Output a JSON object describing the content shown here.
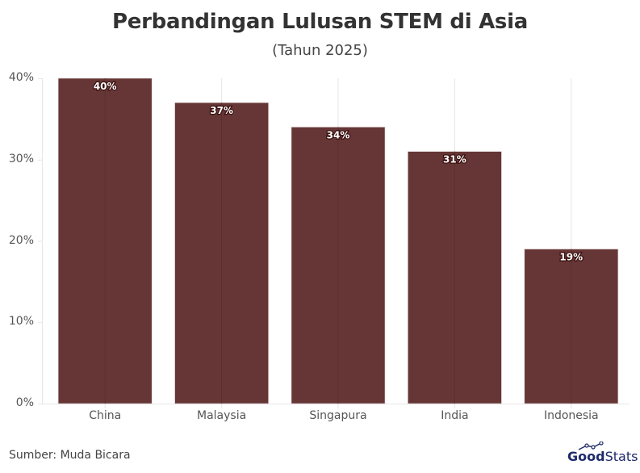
{
  "header": {
    "title": "Perbandingan Lulusan STEM di Asia",
    "subtitle": "(Tahun 2025)"
  },
  "footer": {
    "source": "Sumber: Muda Bicara",
    "logo_bold": "Good",
    "logo_light": "Stats"
  },
  "colors": {
    "bar": "#663636",
    "grid": "#e6e6e6",
    "text": "#555555"
  },
  "axis": {
    "yticks": [
      "0%",
      "10%",
      "20%",
      "30%",
      "40%"
    ]
  },
  "chart_data": {
    "type": "bar",
    "title": "Perbandingan Lulusan STEM di Asia",
    "subtitle": "(Tahun 2025)",
    "categories": [
      "China",
      "Malaysia",
      "Singapura",
      "India",
      "Indonesia"
    ],
    "values": [
      40,
      37,
      34,
      31,
      19
    ],
    "value_labels": [
      "40%",
      "37%",
      "34%",
      "31%",
      "19%"
    ],
    "xlabel": "",
    "ylabel": "",
    "ylim": [
      0,
      40
    ],
    "yticks": [
      "0%",
      "10%",
      "20%",
      "30%",
      "40%"
    ],
    "grid": true,
    "legend": "none",
    "source": "Sumber: Muda Bicara"
  }
}
